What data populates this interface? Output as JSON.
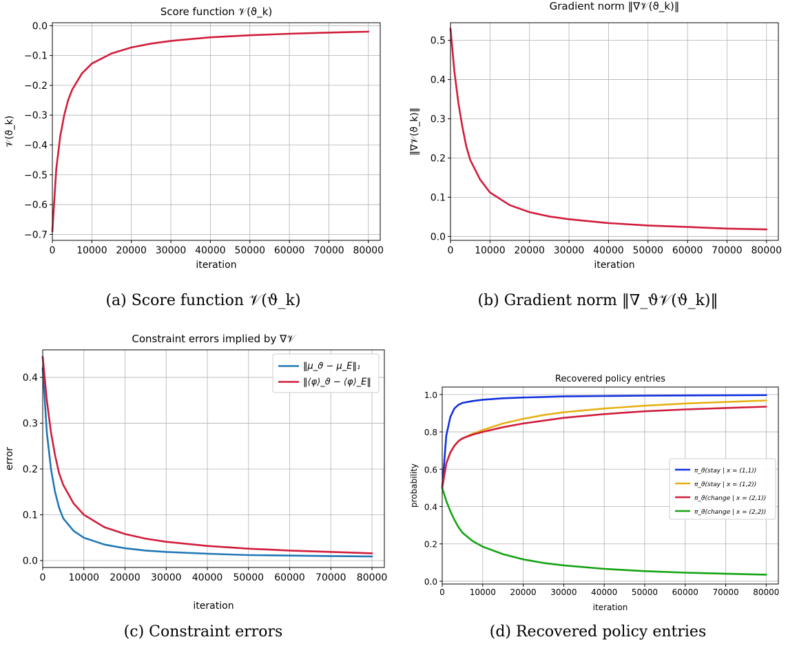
{
  "chart_data": [
    {
      "id": "a",
      "type": "line",
      "title": "Score function 𝒱(ϑ_k)",
      "caption": "(a) Score function 𝒱(ϑ_k)",
      "xlabel": "iteration",
      "ylabel": "𝒱(ϑ_k)",
      "xlim": [
        0,
        83000
      ],
      "ylim": [
        -0.72,
        0.01
      ],
      "xticks": [
        0,
        10000,
        20000,
        30000,
        40000,
        50000,
        60000,
        70000,
        80000
      ],
      "yticks": [
        0.0,
        -0.1,
        -0.2,
        -0.3,
        -0.4,
        -0.5,
        -0.6,
        -0.7
      ],
      "ytick_labels": [
        "0.0",
        "−0.1",
        "−0.2",
        "−0.3",
        "−0.4",
        "−0.5",
        "−0.6",
        "−0.7"
      ],
      "grid": true,
      "colors": {
        "score": "#d01c3a"
      },
      "series": [
        {
          "key": "score",
          "x": [
            0,
            1000,
            2000,
            3000,
            4000,
            5000,
            7500,
            10000,
            15000,
            20000,
            25000,
            30000,
            40000,
            50000,
            60000,
            70000,
            80000
          ],
          "values": [
            -0.69,
            -0.48,
            -0.37,
            -0.3,
            -0.25,
            -0.215,
            -0.16,
            -0.127,
            -0.093,
            -0.073,
            -0.06,
            -0.051,
            -0.039,
            -0.032,
            -0.027,
            -0.023,
            -0.02
          ]
        }
      ]
    },
    {
      "id": "b",
      "type": "line",
      "title": "Gradient norm ‖∇𝒱(ϑ_k)‖",
      "caption": "(b) Gradient norm ‖∇_ϑ𝒱(ϑ_k)‖",
      "xlabel": "iteration",
      "ylabel": "‖∇𝒱(ϑ_k)‖",
      "xlim": [
        0,
        83000
      ],
      "ylim": [
        -0.01,
        0.545
      ],
      "xticks": [
        0,
        10000,
        20000,
        30000,
        40000,
        50000,
        60000,
        70000,
        80000
      ],
      "yticks": [
        0.0,
        0.1,
        0.2,
        0.3,
        0.4,
        0.5
      ],
      "ytick_labels": [
        "0.0",
        "0.1",
        "0.2",
        "0.3",
        "0.4",
        "0.5"
      ],
      "grid": true,
      "colors": {
        "grad": "#d01c3a"
      },
      "series": [
        {
          "key": "grad",
          "x": [
            0,
            1000,
            2000,
            3000,
            4000,
            5000,
            7500,
            10000,
            15000,
            20000,
            25000,
            30000,
            40000,
            50000,
            60000,
            70000,
            80000
          ],
          "values": [
            0.53,
            0.42,
            0.34,
            0.28,
            0.23,
            0.195,
            0.145,
            0.112,
            0.08,
            0.062,
            0.051,
            0.044,
            0.034,
            0.028,
            0.024,
            0.02,
            0.018
          ]
        }
      ]
    },
    {
      "id": "c",
      "type": "line",
      "title": "Constraint errors implied by ∇𝒱",
      "caption": "(c) Constraint errors",
      "xlabel": "iteration",
      "ylabel": "error",
      "xlim": [
        0,
        83000
      ],
      "ylim": [
        -0.015,
        0.46
      ],
      "xticks": [
        0,
        10000,
        20000,
        30000,
        40000,
        50000,
        60000,
        70000,
        80000
      ],
      "yticks": [
        0.0,
        0.1,
        0.2,
        0.3,
        0.4
      ],
      "ytick_labels": [
        "0.0",
        "0.1",
        "0.2",
        "0.3",
        "0.4"
      ],
      "grid": true,
      "legend_position": "top-right",
      "colors": {
        "mu": "#1f77b4",
        "phi": "#d01c3a"
      },
      "series": [
        {
          "key": "mu",
          "name": "‖μ_ϑ − μ_E‖₁",
          "x": [
            0,
            1000,
            2000,
            3000,
            4000,
            5000,
            7500,
            10000,
            15000,
            20000,
            25000,
            30000,
            40000,
            50000,
            60000,
            70000,
            80000
          ],
          "values": [
            0.42,
            0.28,
            0.2,
            0.15,
            0.115,
            0.092,
            0.065,
            0.05,
            0.035,
            0.027,
            0.022,
            0.019,
            0.015,
            0.012,
            0.011,
            0.01,
            0.009
          ]
        },
        {
          "key": "phi",
          "name": "‖⟨φ⟩_ϑ − ⟨φ⟩_E‖",
          "x": [
            0,
            1000,
            2000,
            3000,
            4000,
            5000,
            7500,
            10000,
            15000,
            20000,
            25000,
            30000,
            40000,
            50000,
            60000,
            70000,
            80000
          ],
          "values": [
            0.445,
            0.35,
            0.28,
            0.23,
            0.19,
            0.165,
            0.125,
            0.1,
            0.073,
            0.058,
            0.048,
            0.041,
            0.032,
            0.026,
            0.022,
            0.019,
            0.016
          ]
        }
      ]
    },
    {
      "id": "d",
      "type": "line",
      "title": "Recovered policy entries",
      "caption": "(d) Recovered policy entries",
      "xlabel": "iteration",
      "ylabel": "probability",
      "xlim": [
        0,
        83000
      ],
      "ylim": [
        -0.015,
        1.04
      ],
      "xticks": [
        0,
        10000,
        20000,
        30000,
        40000,
        50000,
        60000,
        70000,
        80000
      ],
      "yticks": [
        0.0,
        0.2,
        0.4,
        0.6,
        0.8,
        1.0
      ],
      "ytick_labels": [
        "0.0",
        "0.2",
        "0.4",
        "0.6",
        "0.8",
        "1.0"
      ],
      "grid": true,
      "legend_position": "center-right",
      "colors": {
        "s11": "#1030e0",
        "s12": "#e6b014",
        "c21": "#d01c3a",
        "c22": "#12a312"
      },
      "series": [
        {
          "key": "s11",
          "name": "π_ϑ(stay | x = (1,1))",
          "x": [
            0,
            1000,
            2000,
            3000,
            4000,
            5000,
            7500,
            10000,
            15000,
            20000,
            25000,
            30000,
            40000,
            50000,
            60000,
            70000,
            80000
          ],
          "values": [
            0.5,
            0.78,
            0.88,
            0.925,
            0.945,
            0.955,
            0.965,
            0.972,
            0.98,
            0.984,
            0.987,
            0.99,
            0.992,
            0.994,
            0.995,
            0.996,
            0.997
          ]
        },
        {
          "key": "s12",
          "name": "π_ϑ(stay | x = (1,2))",
          "x": [
            0,
            1000,
            2000,
            3000,
            4000,
            5000,
            7500,
            10000,
            15000,
            20000,
            25000,
            30000,
            40000,
            50000,
            60000,
            70000,
            80000
          ],
          "values": [
            0.5,
            0.63,
            0.69,
            0.725,
            0.75,
            0.765,
            0.79,
            0.81,
            0.845,
            0.87,
            0.89,
            0.905,
            0.925,
            0.94,
            0.952,
            0.96,
            0.968
          ]
        },
        {
          "key": "c21",
          "name": "π_ϑ(change | x = (2,1))",
          "x": [
            0,
            1000,
            2000,
            3000,
            4000,
            5000,
            7500,
            10000,
            15000,
            20000,
            25000,
            30000,
            40000,
            50000,
            60000,
            70000,
            80000
          ],
          "values": [
            0.5,
            0.63,
            0.69,
            0.725,
            0.75,
            0.765,
            0.785,
            0.8,
            0.825,
            0.845,
            0.86,
            0.875,
            0.895,
            0.91,
            0.92,
            0.928,
            0.935
          ]
        },
        {
          "key": "c22",
          "name": "π_ϑ(change | x = (2,2))",
          "x": [
            0,
            1000,
            2000,
            3000,
            4000,
            5000,
            7500,
            10000,
            15000,
            20000,
            25000,
            30000,
            40000,
            50000,
            60000,
            70000,
            80000
          ],
          "values": [
            0.5,
            0.43,
            0.375,
            0.33,
            0.29,
            0.26,
            0.215,
            0.185,
            0.145,
            0.117,
            0.098,
            0.085,
            0.066,
            0.054,
            0.046,
            0.04,
            0.035
          ]
        }
      ]
    }
  ]
}
